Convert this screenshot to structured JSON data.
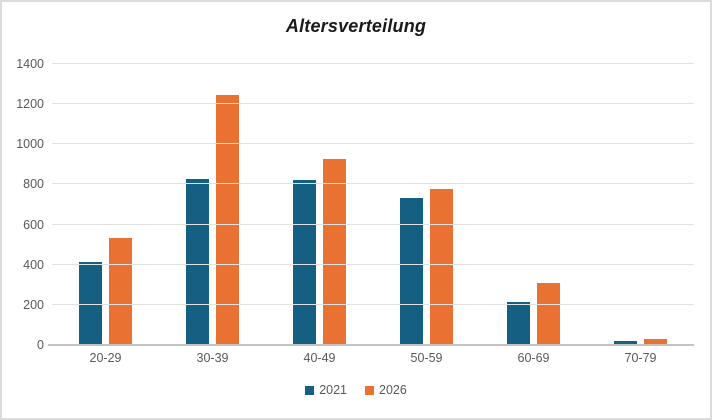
{
  "window": {
    "background": "#ffffff",
    "border_color": "#dcdcdc"
  },
  "chart_data": {
    "type": "bar",
    "title": "Altersverteilung",
    "categories": [
      "20-29",
      "30-39",
      "40-49",
      "50-59",
      "60-69",
      "70-79"
    ],
    "series": [
      {
        "name": "2021",
        "color": "#156082",
        "values": [
          415,
          825,
          820,
          730,
          215,
          20
        ]
      },
      {
        "name": "2026",
        "color": "#E97132",
        "values": [
          535,
          1245,
          925,
          775,
          310,
          30
        ]
      }
    ],
    "xlabel": "",
    "ylabel": "",
    "ylim": [
      0,
      1400
    ],
    "yticks": [
      0,
      200,
      400,
      600,
      800,
      1000,
      1200,
      1400
    ],
    "grid": true,
    "gridline_color": "#e1e1e1",
    "axis_line_color": "#c3c3c3",
    "tick_label_color": "#595959",
    "title_color": "#1a1a1a",
    "legend_position": "bottom"
  }
}
